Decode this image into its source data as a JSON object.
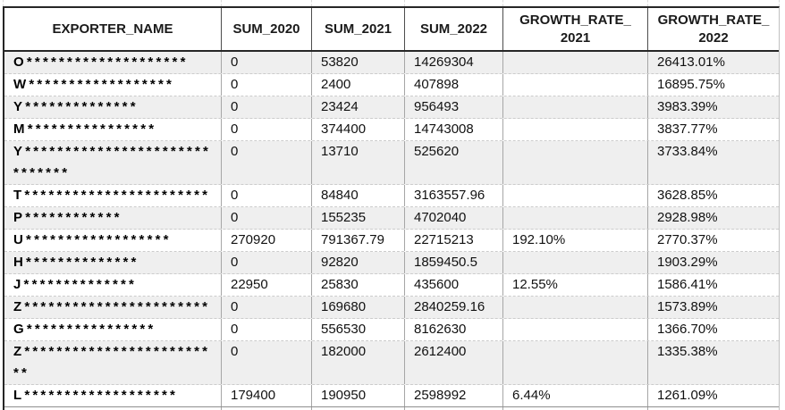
{
  "table": {
    "columns": [
      {
        "key": "name",
        "label": "EXPORTER_NAME"
      },
      {
        "key": "sum_2020",
        "label": "SUM_2020"
      },
      {
        "key": "sum_2021",
        "label": "SUM_2021"
      },
      {
        "key": "sum_2022",
        "label": "SUM_2022"
      },
      {
        "key": "gr_2021",
        "label": "GROWTH_RATE_",
        "label2": "2021"
      },
      {
        "key": "gr_2022",
        "label": "GROWTH_RATE_",
        "label2": "2022"
      }
    ],
    "rows": [
      {
        "name": "O********************",
        "sum_2020": "0",
        "sum_2021": "53820",
        "sum_2022": "14269304",
        "gr_2021": "",
        "gr_2022": "26413.01%"
      },
      {
        "name": "W******************",
        "sum_2020": "0",
        "sum_2021": "2400",
        "sum_2022": "407898",
        "gr_2021": "",
        "gr_2022": "16895.75%"
      },
      {
        "name": "Y**************",
        "sum_2020": "0",
        "sum_2021": "23424",
        "sum_2022": "956493",
        "gr_2021": "",
        "gr_2022": "3983.39%"
      },
      {
        "name": "M****************",
        "sum_2020": "0",
        "sum_2021": "374400",
        "sum_2022": "14743008",
        "gr_2021": "",
        "gr_2022": "3837.77%"
      },
      {
        "name": "Y******************************",
        "sum_2020": "0",
        "sum_2021": "13710",
        "sum_2022": "525620",
        "gr_2021": "",
        "gr_2022": "3733.84%"
      },
      {
        "name": "T***********************",
        "sum_2020": "0",
        "sum_2021": "84840",
        "sum_2022": "3163557.96",
        "gr_2021": "",
        "gr_2022": "3628.85%"
      },
      {
        "name": "P************",
        "sum_2020": "0",
        "sum_2021": "155235",
        "sum_2022": "4702040",
        "gr_2021": "",
        "gr_2022": "2928.98%"
      },
      {
        "name": "U******************",
        "sum_2020": "270920",
        "sum_2021": "791367.79",
        "sum_2022": "22715213",
        "gr_2021": "192.10%",
        "gr_2022": "2770.37%"
      },
      {
        "name": "H**************",
        "sum_2020": "0",
        "sum_2021": "92820",
        "sum_2022": "1859450.5",
        "gr_2021": "",
        "gr_2022": "1903.29%"
      },
      {
        "name": "J**************",
        "sum_2020": "22950",
        "sum_2021": "25830",
        "sum_2022": "435600",
        "gr_2021": "12.55%",
        "gr_2022": "1586.41%"
      },
      {
        "name": "Z***********************",
        "sum_2020": "0",
        "sum_2021": "169680",
        "sum_2022": "2840259.16",
        "gr_2021": "",
        "gr_2022": "1573.89%"
      },
      {
        "name": "G****************",
        "sum_2020": "0",
        "sum_2021": "556530",
        "sum_2022": "8162630",
        "gr_2021": "",
        "gr_2022": "1366.70%"
      },
      {
        "name": "Z*************************",
        "sum_2020": "0",
        "sum_2021": "182000",
        "sum_2022": "2612400",
        "gr_2021": "",
        "gr_2022": "1335.38%"
      },
      {
        "name": "L*******************",
        "sum_2020": "179400",
        "sum_2021": "190950",
        "sum_2022": "2598992",
        "gr_2021": "6.44%",
        "gr_2022": "1261.09%"
      }
    ]
  },
  "colors": {
    "band_gray": "#efefef",
    "header_border": "#262626",
    "cell_divider": "#a6a6a6",
    "row_divider_dashed": "#cccccc",
    "text": "#111111"
  }
}
